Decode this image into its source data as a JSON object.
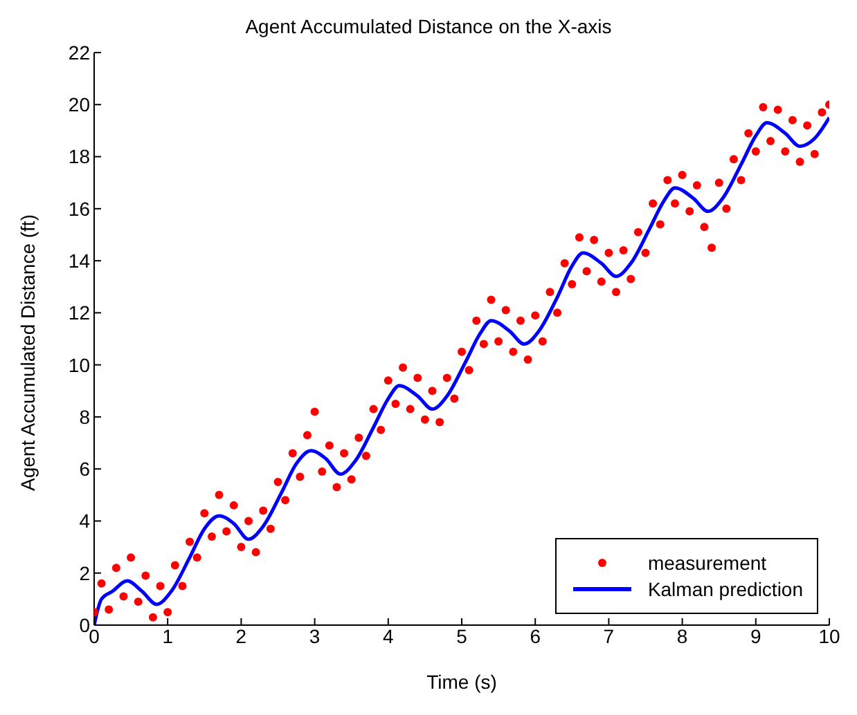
{
  "chart_data": {
    "type": "scatter",
    "title": "Agent Accumulated Distance on the X-axis",
    "xlabel": "Time (s)",
    "ylabel": "Agent Accumulated Distance (ft)",
    "xlim": [
      0,
      10
    ],
    "xticks": [
      0,
      1,
      2,
      3,
      4,
      5,
      6,
      7,
      8,
      9,
      10
    ],
    "ylim": [
      0,
      22
    ],
    "yticks": [
      0,
      2,
      4,
      6,
      8,
      10,
      12,
      14,
      16,
      18,
      20,
      22
    ],
    "legend": "bottom right",
    "grid": false,
    "series": [
      {
        "name": "measurement",
        "type": "scatter",
        "marker": "circle",
        "color": "#ff0000",
        "x": [
          0,
          0.1,
          0.2,
          0.3,
          0.4,
          0.5,
          0.6,
          0.7,
          0.8,
          0.9,
          1,
          1.1,
          1.2,
          1.3,
          1.4,
          1.5,
          1.6,
          1.7,
          1.8,
          1.9,
          2,
          2.1,
          2.2,
          2.3,
          2.4,
          2.5,
          2.6,
          2.7,
          2.8,
          2.9,
          3,
          3.1,
          3.2,
          3.3,
          3.4,
          3.5,
          3.6,
          3.7,
          3.8,
          3.9,
          4,
          4.1,
          4.2,
          4.3,
          4.4,
          4.5,
          4.6,
          4.7,
          4.8,
          4.9,
          5,
          5.1,
          5.2,
          5.3,
          5.4,
          5.5,
          5.6,
          5.7,
          5.8,
          5.9,
          6,
          6.1,
          6.2,
          6.3,
          6.4,
          6.5,
          6.6,
          6.7,
          6.8,
          6.9,
          7,
          7.1,
          7.2,
          7.3,
          7.4,
          7.5,
          7.6,
          7.7,
          7.8,
          7.9,
          8,
          8.1,
          8.2,
          8.3,
          8.4,
          8.5,
          8.6,
          8.7,
          8.8,
          8.9,
          9,
          9.1,
          9.2,
          9.3,
          9.4,
          9.5,
          9.6,
          9.7,
          9.8,
          9.9,
          10
        ],
        "values": [
          0.5,
          1.6,
          0.6,
          2.2,
          1.1,
          2.6,
          0.9,
          1.9,
          0.3,
          1.5,
          0.5,
          2.3,
          1.5,
          3.2,
          2.6,
          4.3,
          3.4,
          5.0,
          3.6,
          4.6,
          3.0,
          4.0,
          2.8,
          4.4,
          3.7,
          5.5,
          4.8,
          6.6,
          5.7,
          7.3,
          8.2,
          5.9,
          6.9,
          5.3,
          6.6,
          5.6,
          7.2,
          6.5,
          8.3,
          7.5,
          9.4,
          8.5,
          9.9,
          8.3,
          9.5,
          7.9,
          9.0,
          7.8,
          9.5,
          8.7,
          10.5,
          9.8,
          11.7,
          10.8,
          12.5,
          10.9,
          12.1,
          10.5,
          11.7,
          10.2,
          11.9,
          10.9,
          12.8,
          12.0,
          13.9,
          13.1,
          14.9,
          13.6,
          14.8,
          13.2,
          14.3,
          12.8,
          14.4,
          13.3,
          15.1,
          14.3,
          16.2,
          15.4,
          17.1,
          16.2,
          17.3,
          15.9,
          16.9,
          15.3,
          14.5,
          17.0,
          16.0,
          17.9,
          17.1,
          18.9,
          18.2,
          19.9,
          18.6,
          19.8,
          18.2,
          19.4,
          17.8,
          19.2,
          18.1,
          19.7,
          20.0
        ]
      },
      {
        "name": "Kalman prediction",
        "type": "line",
        "marker": "none",
        "line_style": "solid",
        "color": "#0000ff",
        "x": [
          0,
          0.1,
          0.25,
          0.45,
          0.65,
          0.85,
          1.05,
          1.3,
          1.5,
          1.7,
          1.9,
          2.1,
          2.3,
          2.55,
          2.75,
          2.95,
          3.15,
          3.35,
          3.55,
          3.8,
          4,
          4.15,
          4.4,
          4.6,
          4.8,
          5.05,
          5.25,
          5.4,
          5.65,
          5.85,
          6.05,
          6.3,
          6.5,
          6.65,
          6.9,
          7.1,
          7.3,
          7.55,
          7.75,
          7.9,
          8.15,
          8.35,
          8.55,
          8.8,
          9,
          9.15,
          9.4,
          9.6,
          9.8,
          10
        ],
        "values": [
          0,
          1.0,
          1.3,
          1.7,
          1.3,
          0.8,
          1.3,
          2.6,
          3.7,
          4.2,
          3.9,
          3.3,
          3.8,
          5.1,
          6.2,
          6.7,
          6.4,
          5.8,
          6.3,
          7.6,
          8.7,
          9.2,
          8.8,
          8.3,
          8.8,
          10.1,
          11.2,
          11.7,
          11.3,
          10.8,
          11.3,
          12.6,
          13.8,
          14.3,
          13.9,
          13.4,
          13.9,
          15.2,
          16.3,
          16.8,
          16.4,
          15.9,
          16.4,
          17.7,
          18.8,
          19.3,
          18.9,
          18.4,
          18.7,
          19.5
        ]
      }
    ]
  }
}
